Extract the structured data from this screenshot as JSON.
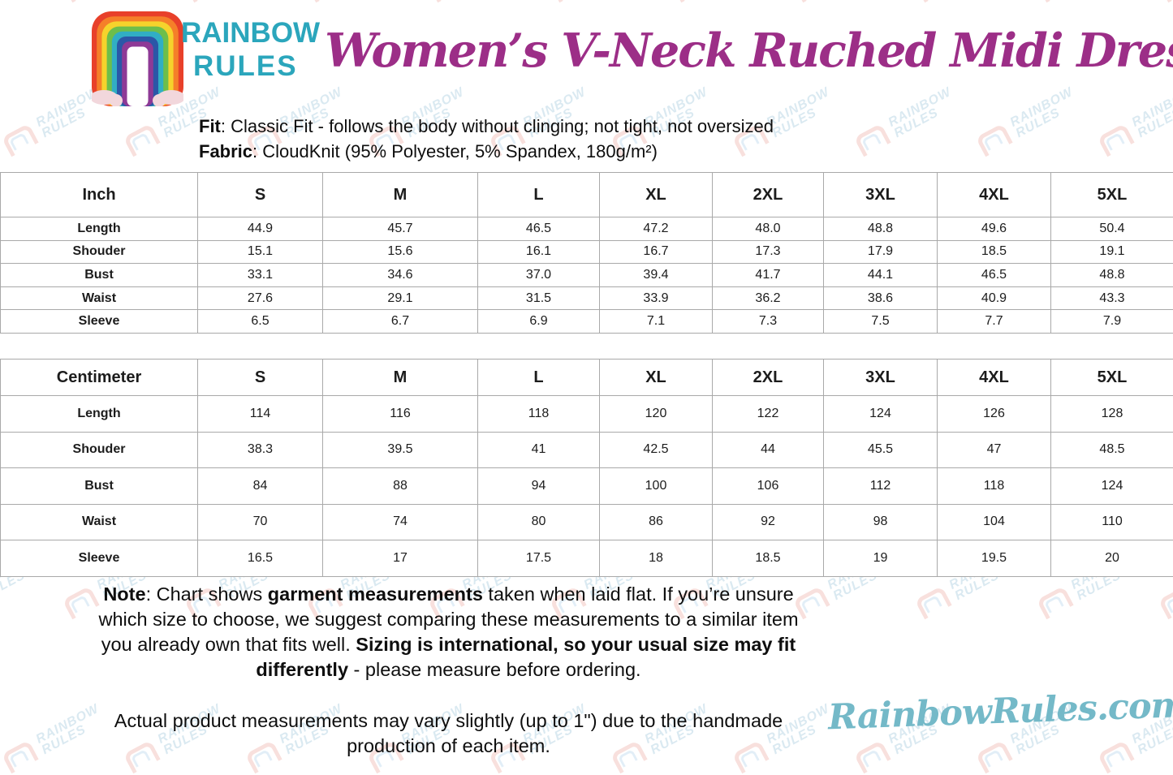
{
  "brand": {
    "logo_text_line1": "RAINBOW",
    "logo_text_line2": "RULES",
    "logo_icon": "rainbow-arch-with-clouds-icon",
    "website": "RainbowRules.com",
    "colors": {
      "teal": "#2ba6bc",
      "title_magenta": "#9c2e87",
      "script_teal": "#74b9c8",
      "rainbow_bands": [
        "#e8402a",
        "#f57f29",
        "#f5d32c",
        "#6dbe4b",
        "#31aec4",
        "#2b57a7",
        "#8e3a96"
      ],
      "cloud_pink": "#f2d7dc",
      "table_border": "#a9a9a9",
      "watermark_blue": "#c2dce8",
      "watermark_red": "#f5cdc7"
    }
  },
  "title": "Women’s V-Neck Ruched Midi Dress",
  "description": {
    "fit_segments": [
      {
        "t": "Fit",
        "b": true
      },
      {
        "t": ": Classic Fit - follows the body without clinging; not tight, not oversized",
        "b": false
      }
    ],
    "fabric_segments": [
      {
        "t": "Fabric",
        "b": true
      },
      {
        "t": ": CloudKnit (95% Polyester, 5% Spandex, 180g/m²)",
        "b": false
      }
    ]
  },
  "size_chart": {
    "columns": [
      "S",
      "M",
      "L",
      "XL",
      "2XL",
      "3XL",
      "4XL",
      "5XL"
    ],
    "tables": [
      {
        "unit": "Inch",
        "rows": [
          {
            "label": "Length",
            "values": [
              "44.9",
              "45.7",
              "46.5",
              "47.2",
              "48.0",
              "48.8",
              "49.6",
              "50.4"
            ]
          },
          {
            "label": "Shouder",
            "values": [
              "15.1",
              "15.6",
              "16.1",
              "16.7",
              "17.3",
              "17.9",
              "18.5",
              "19.1"
            ]
          },
          {
            "label": "Bust",
            "values": [
              "33.1",
              "34.6",
              "37.0",
              "39.4",
              "41.7",
              "44.1",
              "46.5",
              "48.8"
            ]
          },
          {
            "label": "Waist",
            "values": [
              "27.6",
              "29.1",
              "31.5",
              "33.9",
              "36.2",
              "38.6",
              "40.9",
              "43.3"
            ]
          },
          {
            "label": "Sleeve",
            "values": [
              "6.5",
              "6.7",
              "6.9",
              "7.1",
              "7.3",
              "7.5",
              "7.7",
              "7.9"
            ]
          }
        ]
      },
      {
        "unit": "Centimeter",
        "rows": [
          {
            "label": "Length",
            "values": [
              "114",
              "116",
              "118",
              "120",
              "122",
              "124",
              "126",
              "128"
            ]
          },
          {
            "label": "Shouder",
            "values": [
              "38.3",
              "39.5",
              "41",
              "42.5",
              "44",
              "45.5",
              "47",
              "48.5"
            ]
          },
          {
            "label": "Bust",
            "values": [
              "84",
              "88",
              "94",
              "100",
              "106",
              "112",
              "118",
              "124"
            ]
          },
          {
            "label": "Waist",
            "values": [
              "70",
              "74",
              "80",
              "86",
              "92",
              "98",
              "104",
              "110"
            ]
          },
          {
            "label": "Sleeve",
            "values": [
              "16.5",
              "17",
              "17.5",
              "18",
              "18.5",
              "19",
              "19.5",
              "20"
            ]
          }
        ]
      }
    ]
  },
  "notes": {
    "note_segments": [
      {
        "t": "Note",
        "b": true
      },
      {
        "t": ": Chart shows ",
        "b": false
      },
      {
        "t": "garment measurements",
        "b": true
      },
      {
        "t": " taken when laid flat. If you’re unsure which size to choose, we suggest comparing these measurements to a similar item you already own that fits well. ",
        "b": false
      },
      {
        "t": "Sizing is international, so your usual size may fit differently",
        "b": true
      },
      {
        "t": " - please measure before ordering.",
        "b": false
      }
    ],
    "disclaimer": "Actual product measurements may vary slightly (up to 1\") due to the handmade production of each item."
  },
  "watermark": {
    "text_line1": "RAINBOW",
    "text_line2": "RULES"
  }
}
